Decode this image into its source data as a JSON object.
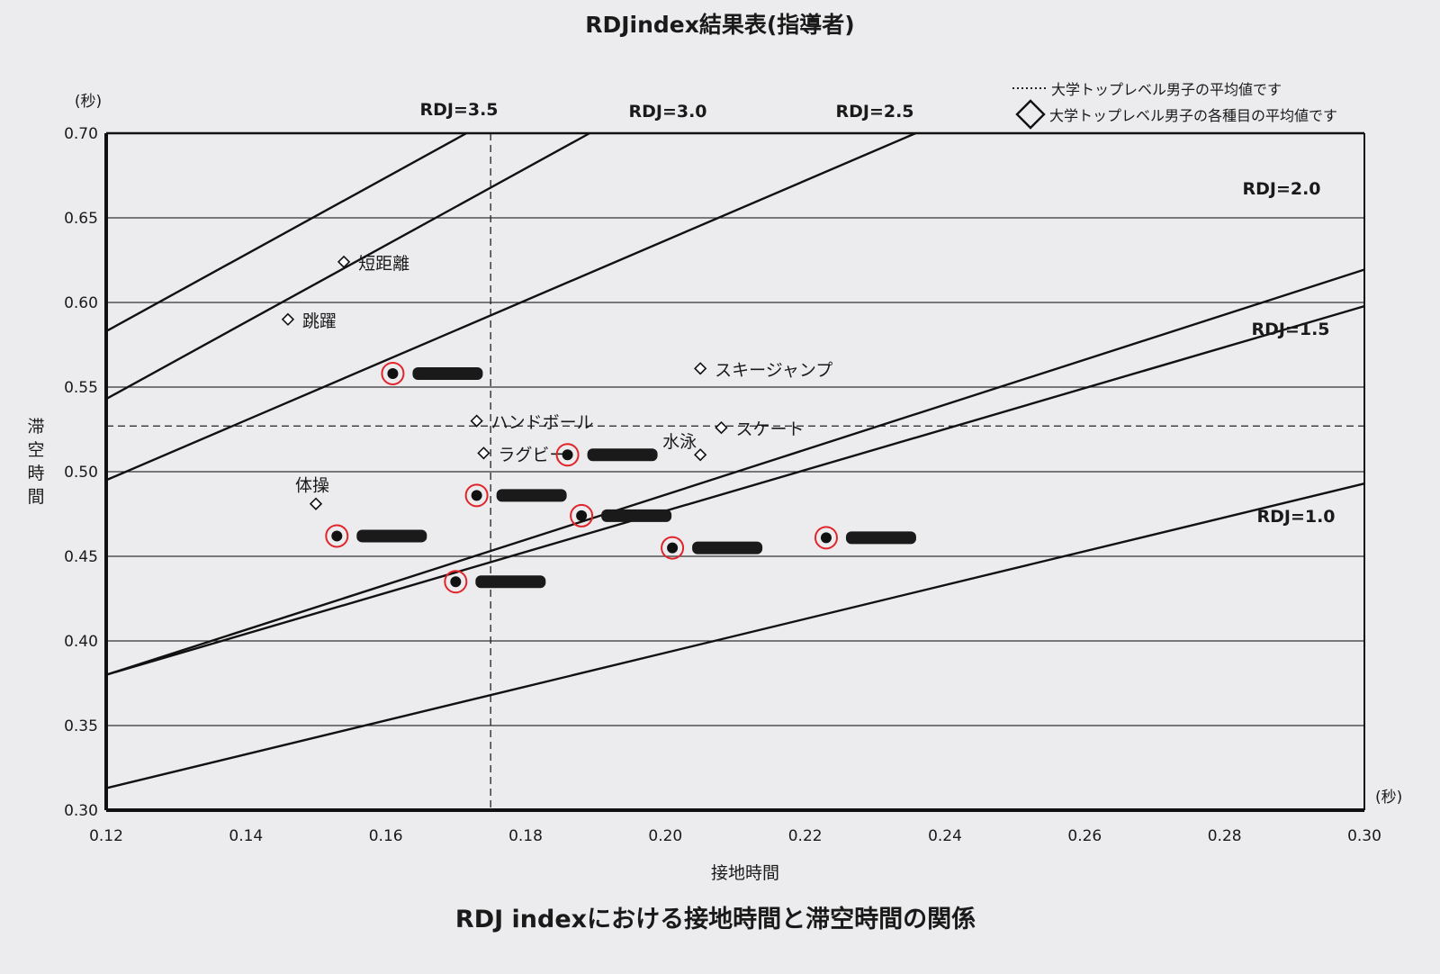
{
  "chart_data": {
    "type": "scatter",
    "title": "RDJindex結果表(指導者)",
    "caption": "RDJ indexにおける接地時間と滞空時間の関係",
    "xlabel": "接地時間",
    "ylabel": "滞空時間",
    "x_unit": "(秒)",
    "y_unit": "(秒)",
    "xlim": [
      0.12,
      0.3
    ],
    "ylim": [
      0.3,
      0.7
    ],
    "xticks": [
      "0.12",
      "0.14",
      "0.16",
      "0.18",
      "0.20",
      "0.22",
      "0.24",
      "0.26",
      "0.28",
      "0.30"
    ],
    "yticks": [
      "0.30",
      "0.35",
      "0.40",
      "0.45",
      "0.50",
      "0.55",
      "0.60",
      "0.65",
      "0.70"
    ],
    "grid": "horizontal",
    "legend": {
      "placement": "top-right",
      "items": [
        {
          "symbol": "dotted-line",
          "label": "大学トップレベル男子の平均値です"
        },
        {
          "symbol": "diamond",
          "label": "大学トップレベル男子の各種目の平均値です"
        }
      ]
    },
    "rdj_lines": [
      {
        "rdj": 3.5,
        "label": "RDJ=3.5"
      },
      {
        "rdj": 3.0,
        "label": "RDJ=3.0"
      },
      {
        "rdj": 2.5,
        "label": "RDJ=2.5"
      },
      {
        "rdj": 2.0,
        "label": "RDJ=2.0"
      },
      {
        "rdj": 1.5,
        "label": "RDJ=1.5"
      },
      {
        "rdj": 1.0,
        "label": "RDJ=1.0"
      }
    ],
    "average": {
      "contact_time": 0.175,
      "flight_time": 0.527
    },
    "sports": [
      {
        "name": "短距離",
        "x": 0.154,
        "y": 0.624
      },
      {
        "name": "跳躍",
        "x": 0.146,
        "y": 0.59
      },
      {
        "name": "スキージャンプ",
        "x": 0.205,
        "y": 0.561
      },
      {
        "name": "ハンドボール",
        "x": 0.173,
        "y": 0.53
      },
      {
        "name": "スケート",
        "x": 0.208,
        "y": 0.526
      },
      {
        "name": "水泳",
        "x": 0.205,
        "y": 0.51
      },
      {
        "name": "ラグビー",
        "x": 0.174,
        "y": 0.511
      },
      {
        "name": "体操",
        "x": 0.15,
        "y": 0.481
      }
    ],
    "athletes": [
      {
        "x": 0.161,
        "y": 0.558
      },
      {
        "x": 0.186,
        "y": 0.51
      },
      {
        "x": 0.173,
        "y": 0.486
      },
      {
        "x": 0.188,
        "y": 0.474
      },
      {
        "x": 0.153,
        "y": 0.462
      },
      {
        "x": 0.201,
        "y": 0.455
      },
      {
        "x": 0.223,
        "y": 0.461
      },
      {
        "x": 0.17,
        "y": 0.435
      }
    ]
  }
}
